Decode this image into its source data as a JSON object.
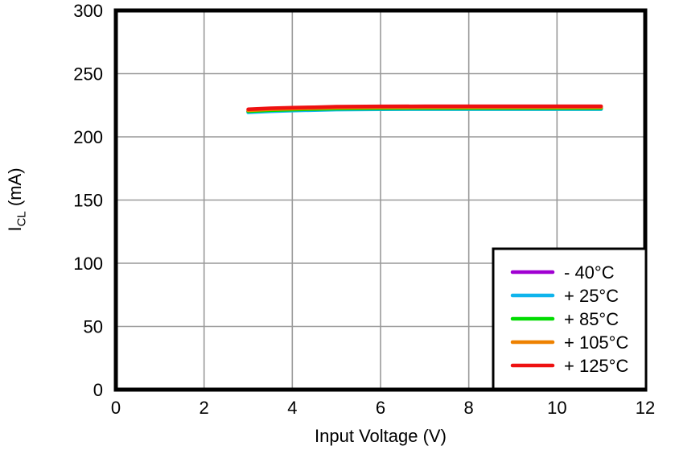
{
  "chart_data": {
    "type": "line",
    "title": "",
    "xlabel": "Input Voltage (V)",
    "ylabel": "ICL (mA)",
    "ylabel_main": "I",
    "ylabel_sub": "CL",
    "ylabel_unit": " (mA)",
    "xlim": [
      0,
      12
    ],
    "ylim": [
      0,
      300
    ],
    "xticks": [
      0,
      2,
      4,
      6,
      8,
      10,
      12
    ],
    "yticks": [
      0,
      50,
      100,
      150,
      200,
      250,
      300
    ],
    "grid": true,
    "legend_position": "lower-right",
    "x": [
      3,
      3.5,
      4,
      4.5,
      5,
      6,
      7,
      8,
      9,
      10,
      11
    ],
    "series": [
      {
        "name": "- 40°C",
        "color": "#A000D2",
        "values": [
          219.9,
          220.7,
          221.3,
          221.7,
          222.1,
          222.3,
          222.4,
          222.4,
          222.4,
          222.4,
          222.4
        ]
      },
      {
        "name": "+ 25°C",
        "color": "#0FB4EC",
        "values": [
          219.4,
          220.2,
          220.8,
          221.2,
          221.6,
          221.8,
          221.9,
          221.9,
          221.9,
          221.9,
          221.9
        ]
      },
      {
        "name": "+ 85°C",
        "color": "#00DC00",
        "values": [
          220.3,
          221.1,
          221.6,
          222.0,
          222.4,
          222.6,
          222.7,
          222.7,
          222.7,
          222.7,
          222.7
        ]
      },
      {
        "name": "+ 105°C",
        "color": "#EE8100",
        "values": [
          221.0,
          221.8,
          222.3,
          222.7,
          223.1,
          223.3,
          223.4,
          223.4,
          223.4,
          223.4,
          223.4
        ]
      },
      {
        "name": "+ 125°C",
        "color": "#EE1111",
        "values": [
          221.8,
          222.6,
          223.1,
          223.4,
          223.9,
          224.1,
          224.2,
          224.2,
          224.2,
          224.2,
          224.2
        ]
      }
    ]
  },
  "colors": {
    "background": "#FFFFFF",
    "axis": "#000000",
    "grid": "#999999",
    "text": "#000000",
    "legend_background": "#FFFFFF",
    "legend_border": "#000000"
  }
}
